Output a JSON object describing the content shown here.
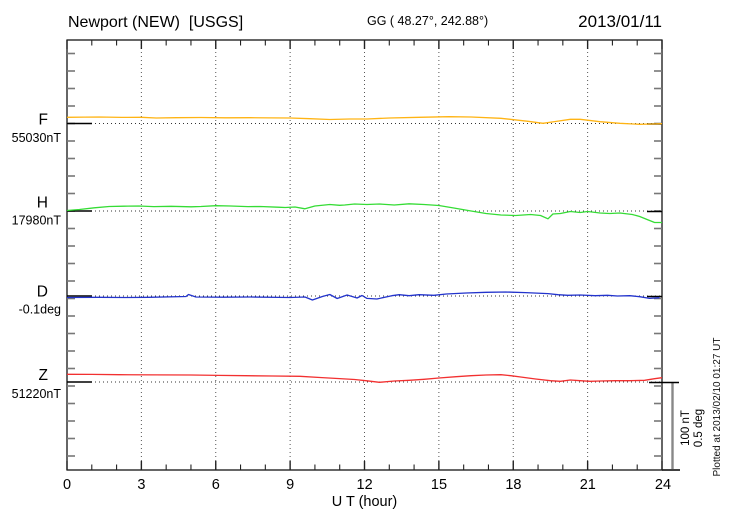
{
  "header": {
    "station": "Newport (NEW)  [USGS]",
    "coordinates": "GG ( 48.27°, 242.88°)",
    "date": "2013/01/11"
  },
  "scale_bar": {
    "nT_label": "100 nT",
    "deg_label": "0.5 deg"
  },
  "footer": {
    "plotted_note": "Plotted at 2013/02/10 01:27 UT"
  },
  "chart_data": {
    "type": "line",
    "title": "Newport (NEW)  [USGS]",
    "xlabel": "U T (hour)",
    "x_range": [
      0,
      24
    ],
    "x_ticks": [
      0,
      3,
      6,
      9,
      12,
      15,
      18,
      21,
      24
    ],
    "grid": "dotted vertical lines every 3 h; dotted horizontal reference baseline per trace",
    "legend_position": "left margin, one colored label per trace",
    "scale": {
      "nT_per_div": 100,
      "deg_per_div": 0.5
    },
    "points_format": "[hour_UT, offset_from_reference_value_in_unit]",
    "series": [
      {
        "name": "F",
        "reference_label": "55030nT",
        "reference_value": 55030,
        "unit": "nT",
        "color": "#FFB414",
        "points": [
          [
            0,
            7.4
          ],
          [
            0.7,
            7.6
          ],
          [
            1.3,
            7.7
          ],
          [
            2.2,
            7.3
          ],
          [
            3.0,
            7.4
          ],
          [
            3.6,
            6.5
          ],
          [
            4.4,
            6.9
          ],
          [
            5.4,
            7.1
          ],
          [
            6.4,
            6.8
          ],
          [
            7.4,
            6.9
          ],
          [
            8.2,
            6.7
          ],
          [
            9.0,
            6.5
          ],
          [
            9.8,
            5.7
          ],
          [
            10.6,
            4.8
          ],
          [
            11.4,
            5.4
          ],
          [
            12.1,
            5.4
          ],
          [
            13.0,
            6.5
          ],
          [
            14.2,
            7.4
          ],
          [
            15.4,
            8.1
          ],
          [
            16.3,
            7.7
          ],
          [
            17.5,
            6.2
          ],
          [
            18.6,
            2.6
          ],
          [
            19.2,
            0.2
          ],
          [
            19.7,
            2.4
          ],
          [
            20.3,
            5.0
          ],
          [
            20.7,
            5.0
          ],
          [
            21.5,
            2.1
          ],
          [
            22.3,
            0.2
          ],
          [
            23.1,
            -1.0
          ],
          [
            23.6,
            -0.6
          ],
          [
            24,
            -0.2
          ]
        ]
      },
      {
        "name": "H",
        "reference_label": "17980nT",
        "reference_value": 17980,
        "unit": "nT",
        "color": "#35DC35",
        "points": [
          [
            0,
            0.6
          ],
          [
            0.5,
            1.8
          ],
          [
            1.1,
            3.8
          ],
          [
            1.7,
            5.4
          ],
          [
            2.3,
            5.7
          ],
          [
            2.9,
            6.0
          ],
          [
            3.5,
            5.2
          ],
          [
            4.2,
            5.6
          ],
          [
            5.0,
            5.0
          ],
          [
            5.4,
            5.4
          ],
          [
            6.0,
            6.3
          ],
          [
            6.6,
            6.0
          ],
          [
            7.3,
            5.2
          ],
          [
            7.8,
            5.4
          ],
          [
            8.5,
            4.5
          ],
          [
            8.8,
            4.2
          ],
          [
            9.2,
            4.8
          ],
          [
            9.6,
            2.6
          ],
          [
            10.0,
            6.0
          ],
          [
            10.6,
            7.7
          ],
          [
            11.0,
            6.8
          ],
          [
            11.2,
            7.1
          ],
          [
            11.6,
            8.3
          ],
          [
            12.1,
            7.7
          ],
          [
            12.6,
            8.3
          ],
          [
            13.2,
            7.1
          ],
          [
            13.8,
            8.6
          ],
          [
            14.4,
            7.7
          ],
          [
            15.0,
            6.5
          ],
          [
            15.6,
            3.6
          ],
          [
            16.3,
            0.0
          ],
          [
            16.9,
            -3.0
          ],
          [
            17.5,
            -4.8
          ],
          [
            18.1,
            -5.4
          ],
          [
            18.7,
            -4.2
          ],
          [
            19.1,
            -5.4
          ],
          [
            19.4,
            -9.3
          ],
          [
            19.6,
            -3.6
          ],
          [
            19.9,
            -3.0
          ],
          [
            20.3,
            -0.6
          ],
          [
            20.7,
            -1.8
          ],
          [
            21.0,
            -0.6
          ],
          [
            21.5,
            -2.4
          ],
          [
            21.9,
            -3.0
          ],
          [
            22.3,
            -2.4
          ],
          [
            22.8,
            -4.2
          ],
          [
            23.1,
            -6.5
          ],
          [
            23.4,
            -10.1
          ],
          [
            23.7,
            -13.7
          ],
          [
            24,
            -13.7
          ]
        ]
      },
      {
        "name": "D",
        "reference_label": "-0.1deg",
        "reference_value": -0.1,
        "unit": "deg",
        "color": "#2233CC",
        "points": [
          [
            0,
            -0.009
          ],
          [
            1.3,
            -0.008
          ],
          [
            2.3,
            -0.009
          ],
          [
            3.3,
            -0.008
          ],
          [
            4.8,
            -0.003
          ],
          [
            4.9,
            0.009
          ],
          [
            5.2,
            -0.006
          ],
          [
            6.3,
            -0.007
          ],
          [
            7.4,
            -0.006
          ],
          [
            9.0,
            -0.009
          ],
          [
            9.6,
            -0.006
          ],
          [
            9.9,
            -0.024
          ],
          [
            10.3,
            -0.003
          ],
          [
            10.6,
            0.009
          ],
          [
            10.9,
            -0.015
          ],
          [
            11.3,
            0.006
          ],
          [
            11.7,
            -0.012
          ],
          [
            11.9,
            0.003
          ],
          [
            12.1,
            -0.014
          ],
          [
            12.5,
            -0.018
          ],
          [
            13.1,
            0.002
          ],
          [
            13.4,
            0.008
          ],
          [
            13.8,
            0.002
          ],
          [
            14.2,
            0.008
          ],
          [
            14.8,
            0.004
          ],
          [
            15.3,
            0.012
          ],
          [
            16.1,
            0.018
          ],
          [
            16.9,
            0.022
          ],
          [
            17.7,
            0.024
          ],
          [
            18.5,
            0.02
          ],
          [
            19.4,
            0.014
          ],
          [
            19.8,
            0.008
          ],
          [
            20.2,
            0.004
          ],
          [
            20.7,
            0.006
          ],
          [
            21.3,
            0.002
          ],
          [
            21.8,
            0.004
          ],
          [
            22.2,
            0.0
          ],
          [
            22.7,
            0.002
          ],
          [
            23.1,
            -0.004
          ],
          [
            23.5,
            -0.014
          ],
          [
            23.9,
            -0.01
          ]
        ]
      },
      {
        "name": "Z",
        "reference_label": "51220nT",
        "reference_value": 51220,
        "unit": "nT",
        "color": "#F23030",
        "points": [
          [
            0,
            9.2
          ],
          [
            1.0,
            9.0
          ],
          [
            2.1,
            8.7
          ],
          [
            3.5,
            8.5
          ],
          [
            5.0,
            8.3
          ],
          [
            6.1,
            7.9
          ],
          [
            7.2,
            7.5
          ],
          [
            8.3,
            7.2
          ],
          [
            9.4,
            6.8
          ],
          [
            10.2,
            5.4
          ],
          [
            11.0,
            4.0
          ],
          [
            11.6,
            3.0
          ],
          [
            12.1,
            1.4
          ],
          [
            12.6,
            -0.4
          ],
          [
            13.2,
            1.2
          ],
          [
            13.8,
            2.0
          ],
          [
            14.4,
            3.2
          ],
          [
            15.0,
            4.8
          ],
          [
            15.7,
            6.3
          ],
          [
            16.3,
            7.5
          ],
          [
            16.9,
            8.3
          ],
          [
            17.5,
            8.7
          ],
          [
            17.9,
            7.5
          ],
          [
            18.3,
            6.0
          ],
          [
            18.9,
            3.6
          ],
          [
            19.5,
            1.5
          ],
          [
            19.9,
            0.8
          ],
          [
            20.3,
            2.4
          ],
          [
            20.7,
            1.5
          ],
          [
            21.1,
            0.8
          ],
          [
            21.5,
            1.2
          ],
          [
            22.1,
            1.5
          ],
          [
            22.7,
            1.5
          ],
          [
            23.3,
            2.0
          ],
          [
            23.7,
            3.9
          ],
          [
            24,
            5.1
          ]
        ]
      }
    ]
  }
}
